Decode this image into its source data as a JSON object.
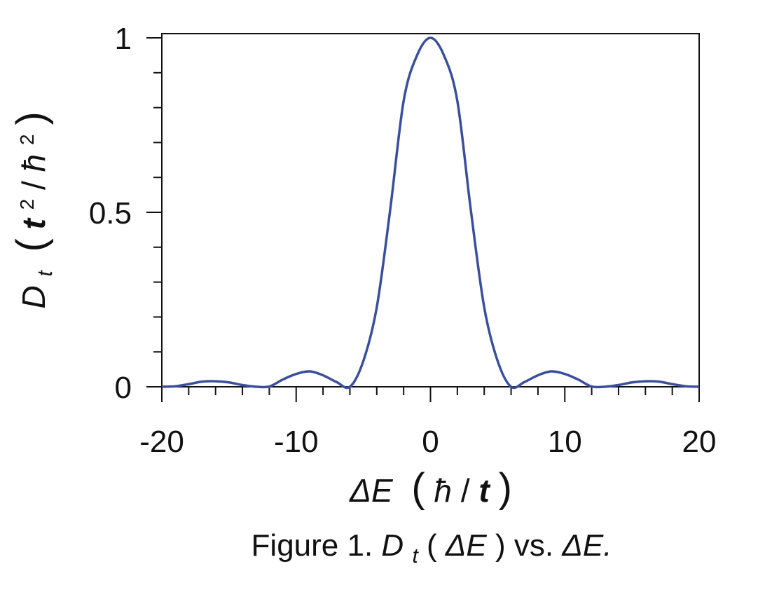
{
  "chart_data": {
    "type": "line",
    "xlim": [
      -20,
      20
    ],
    "ylim": [
      0,
      1
    ],
    "x_ticks": [
      "-20",
      "-10",
      "0",
      "10",
      "20"
    ],
    "y_ticks": [
      "0",
      "0.5",
      "1"
    ],
    "grid": false,
    "legend": "none",
    "series": [
      {
        "color": "#3a4f9b",
        "x": [
          -20,
          -19,
          -18,
          -17,
          -16,
          -15,
          -14,
          -13,
          -12,
          -11,
          -10,
          -9,
          -8,
          -7,
          -6,
          -5,
          -4,
          -3,
          -2,
          -1,
          0,
          1,
          2,
          3,
          4,
          5,
          6,
          7,
          8,
          9,
          10,
          11,
          12,
          13,
          14,
          15,
          16,
          17,
          18,
          19,
          20
        ],
        "y": [
          0.0002,
          0.0016,
          0.0076,
          0.0148,
          0.0159,
          0.0125,
          0.0051,
          0.0003,
          0.0008,
          0.0207,
          0.0368,
          0.0441,
          0.033,
          0.0138,
          0.0001,
          0.0738,
          0.2277,
          0.5073,
          0.819,
          0.95,
          1.0,
          0.95,
          0.819,
          0.5073,
          0.2277,
          0.0738,
          0.0001,
          0.0138,
          0.033,
          0.0441,
          0.0368,
          0.0207,
          0.0008,
          0.0003,
          0.0051,
          0.0125,
          0.0159,
          0.0148,
          0.0076,
          0.0016,
          0.0002
        ]
      }
    ]
  },
  "labels": {
    "x_axis_symbol": "ΔE",
    "x_axis_unit_num": "ħ",
    "x_axis_unit_sep": " / ",
    "x_axis_unit_den": "t",
    "y_axis_symbol": "D",
    "y_axis_sub": "t",
    "y_axis_unit_num": "t",
    "y_axis_unit_sep": " / ",
    "y_axis_unit_den": "ħ",
    "y_axis_unit_exp": "2",
    "caption_prefix": "Figure 1. ",
    "caption_func": "D",
    "caption_func_sub": "t",
    "caption_arg_open": "(",
    "caption_arg": "ΔE",
    "caption_arg_close": ")",
    "caption_vs": " vs. ",
    "caption_end": "ΔE."
  }
}
